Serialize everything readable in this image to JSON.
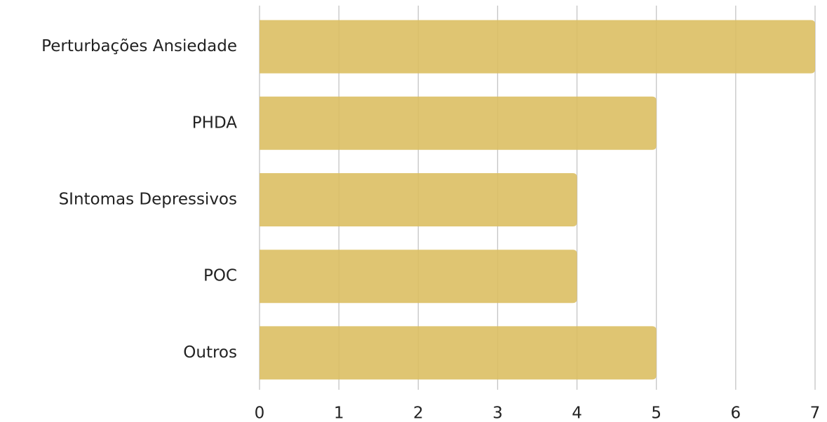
{
  "chart_data": {
    "type": "bar",
    "orientation": "horizontal",
    "categories": [
      "Perturbações Ansiedade",
      "PHDA",
      "SIntomas Depressivos",
      "POC",
      "Outros"
    ],
    "values": [
      7,
      5,
      4,
      4,
      5
    ],
    "color": "#dcbf63",
    "xlim": [
      0,
      7
    ],
    "xticks": [
      0,
      1,
      2,
      3,
      4,
      5,
      6,
      7
    ],
    "grid": true
  }
}
